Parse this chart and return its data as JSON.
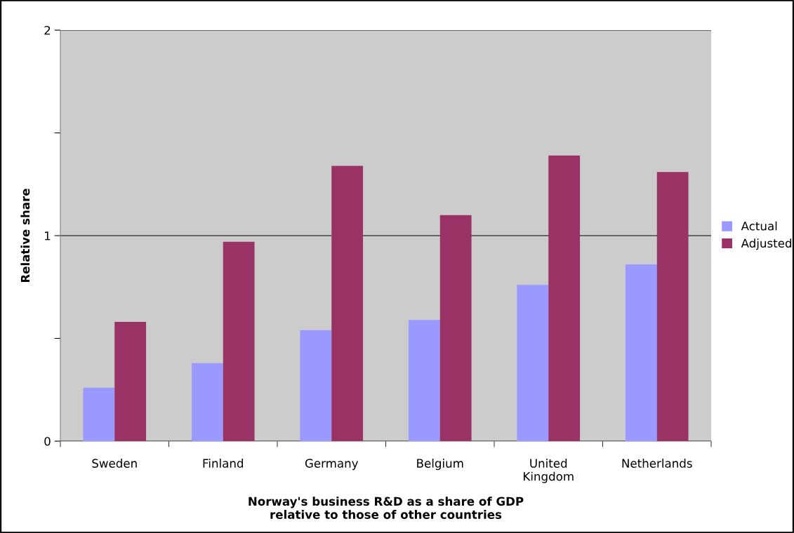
{
  "chart_data": {
    "type": "bar",
    "xlabel": "Norway's business R&D as a share of GDP\nrelative to those of other countries",
    "ylabel": "Relative share",
    "categories": [
      "Sweden",
      "Finland",
      "Germany",
      "Belgium",
      "United\nKingdom",
      "Netherlands"
    ],
    "series": [
      {
        "name": "Actual",
        "color": "#9999ff",
        "values": [
          0.26,
          0.38,
          0.54,
          0.59,
          0.76,
          0.86
        ]
      },
      {
        "name": "Adjusted",
        "color": "#993366",
        "values": [
          0.58,
          0.97,
          1.34,
          1.1,
          1.39,
          1.31
        ]
      }
    ],
    "ylim": [
      0,
      2
    ],
    "yticks": [
      0,
      {
        "value": 0.5,
        "label": null
      },
      1,
      {
        "value": 1.5,
        "label": null
      },
      2
    ],
    "grid": "y",
    "legend": "right"
  }
}
